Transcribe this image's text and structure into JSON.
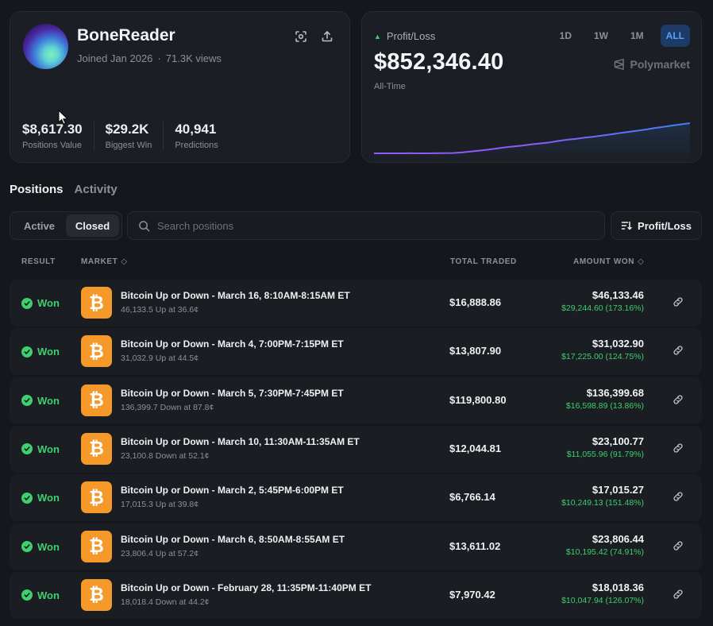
{
  "profile": {
    "username": "BoneReader",
    "joined": "Joined Jan 2026",
    "views": "71.3K views",
    "stats": [
      {
        "value": "$8,617.30",
        "label": "Positions Value"
      },
      {
        "value": "$29.2K",
        "label": "Biggest Win"
      },
      {
        "value": "40,941",
        "label": "Predictions"
      }
    ],
    "icons": [
      "scan-icon",
      "share-icon"
    ]
  },
  "pnl": {
    "label": "Profit/Loss",
    "value": "$852,346.40",
    "period": "All-Time",
    "ranges": [
      "1D",
      "1W",
      "1M",
      "ALL"
    ],
    "active_range": "ALL",
    "brand": "Polymarket",
    "colors": {
      "line_start": "#8b5cf6",
      "line_end": "#3b82f6",
      "positive": "#3ecf6e"
    },
    "series": [
      0,
      0,
      0,
      0,
      0.002,
      0.001,
      0,
      0.002,
      0.004,
      0.01,
      0.03,
      0.06,
      0.09,
      0.12,
      0.16,
      0.2,
      0.23,
      0.26,
      0.3,
      0.33,
      0.36,
      0.41,
      0.45,
      0.48,
      0.52,
      0.55,
      0.59,
      0.63,
      0.67,
      0.71,
      0.75,
      0.79,
      0.84,
      0.88,
      0.92,
      0.96,
      1
    ]
  },
  "tabs": {
    "positions": "Positions",
    "activity": "Activity"
  },
  "filter": {
    "active": "Active",
    "closed": "Closed",
    "selected": "Closed"
  },
  "search": {
    "placeholder": "Search positions"
  },
  "sort": {
    "label": "Profit/Loss"
  },
  "table": {
    "headers": {
      "result": "RESULT",
      "market": "MARKET",
      "traded": "TOTAL TRADED",
      "won": "AMOUNT WON"
    },
    "rows": [
      {
        "result": "Won",
        "title": "Bitcoin Up or Down - March 16, 8:10AM-8:15AM ET",
        "sub": "46,133.5 Up at 36.6¢",
        "traded": "$16,888.86",
        "won": "$46,133.46",
        "gain": "$29,244.60 (173.16%)"
      },
      {
        "result": "Won",
        "title": "Bitcoin Up or Down - March 4, 7:00PM-7:15PM ET",
        "sub": "31,032.9 Up at 44.5¢",
        "traded": "$13,807.90",
        "won": "$31,032.90",
        "gain": "$17,225.00 (124.75%)"
      },
      {
        "result": "Won",
        "title": "Bitcoin Up or Down - March 5, 7:30PM-7:45PM ET",
        "sub": "136,399.7 Down at 87.8¢",
        "traded": "$119,800.80",
        "won": "$136,399.68",
        "gain": "$16,598.89 (13.86%)"
      },
      {
        "result": "Won",
        "title": "Bitcoin Up or Down - March 10, 11:30AM-11:35AM ET",
        "sub": "23,100.8 Down at 52.1¢",
        "traded": "$12,044.81",
        "won": "$23,100.77",
        "gain": "$11,055.96 (91.79%)"
      },
      {
        "result": "Won",
        "title": "Bitcoin Up or Down - March 2, 5:45PM-6:00PM ET",
        "sub": "17,015.3 Up at 39.8¢",
        "traded": "$6,766.14",
        "won": "$17,015.27",
        "gain": "$10,249.13 (151.48%)"
      },
      {
        "result": "Won",
        "title": "Bitcoin Up or Down - March 6, 8:50AM-8:55AM ET",
        "sub": "23,806.4 Up at 57.2¢",
        "traded": "$13,611.02",
        "won": "$23,806.44",
        "gain": "$10,195.42 (74.91%)"
      },
      {
        "result": "Won",
        "title": "Bitcoin Up or Down - February 28, 11:35PM-11:40PM ET",
        "sub": "18,018.4 Down at 44.2¢",
        "traded": "$7,970.42",
        "won": "$18,018.36",
        "gain": "$10,047.94 (126.07%)"
      }
    ]
  }
}
